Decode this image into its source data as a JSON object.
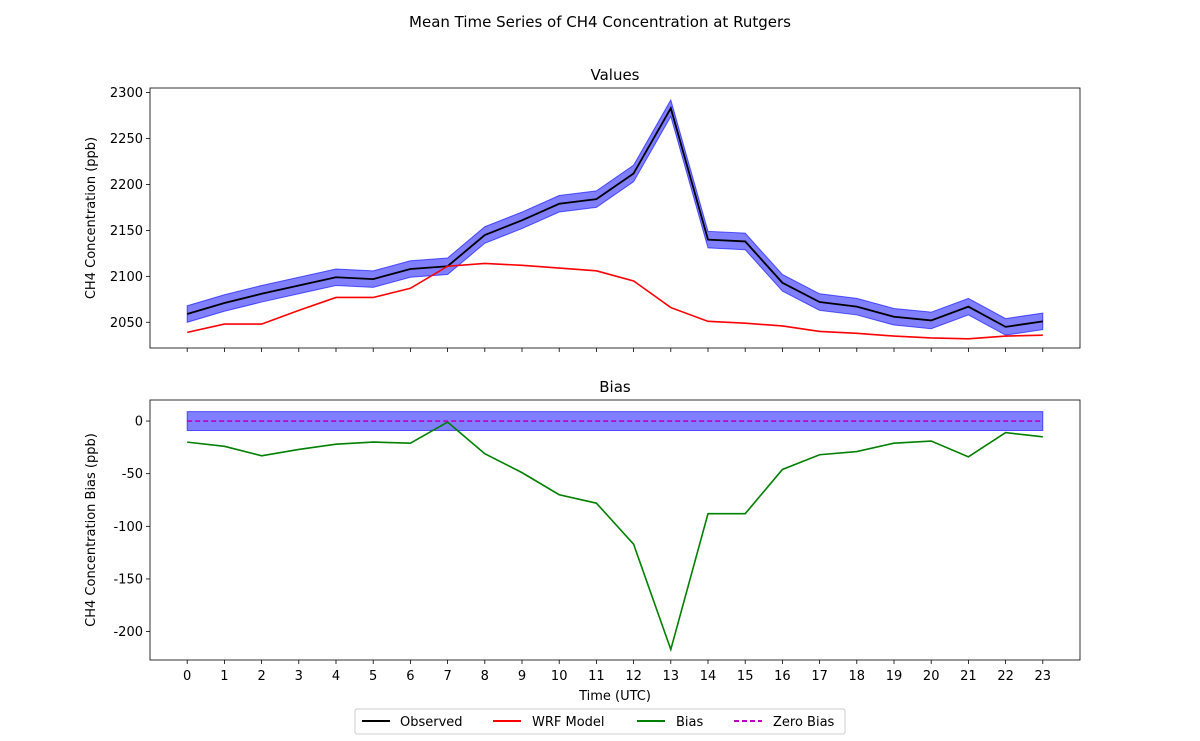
{
  "figure": {
    "suptitle": "Mean Time Series of CH4 Concentration at Rutgers"
  },
  "colors": {
    "observed": "#000000",
    "model": "#ff0000",
    "bias": "#008000",
    "zero_bias": "#bf00bf",
    "uncertainty_band": "#0000ff"
  },
  "legend": {
    "placement": "bottom-center",
    "entries": [
      {
        "label": "Observed",
        "color": "#000000",
        "style": "solid"
      },
      {
        "label": "WRF Model",
        "color": "#ff0000",
        "style": "solid"
      },
      {
        "label": "Bias",
        "color": "#008000",
        "style": "solid"
      },
      {
        "label": "Zero Bias",
        "color": "#bf00bf",
        "style": "dashed"
      }
    ]
  },
  "chart_data": [
    {
      "type": "line",
      "title": "Values",
      "xlabel": "",
      "ylabel": "CH4 Concentration (ppb)",
      "xlim": [
        -1,
        24
      ],
      "ylim": [
        2022,
        2305
      ],
      "yticks": [
        2050,
        2100,
        2150,
        2200,
        2250,
        2300
      ],
      "x": [
        0,
        1,
        2,
        3,
        4,
        5,
        6,
        7,
        8,
        9,
        10,
        11,
        12,
        13,
        14,
        15,
        16,
        17,
        18,
        19,
        20,
        21,
        22,
        23
      ],
      "series": [
        {
          "name": "Observed",
          "color": "#000000",
          "values": [
            2059,
            2071,
            2081,
            2090,
            2099,
            2097,
            2108,
            2111,
            2145,
            2161,
            2179,
            2184,
            2212,
            2283,
            2140,
            2138,
            2093,
            2072,
            2067,
            2056,
            2052,
            2067,
            2045,
            2051
          ],
          "band": 9
        },
        {
          "name": "WRF Model",
          "color": "#ff0000",
          "values": [
            2039,
            2048,
            2048,
            2063,
            2077,
            2077,
            2087,
            2111,
            2114,
            2112,
            2109,
            2106,
            2095,
            2066,
            2051,
            2049,
            2046,
            2040,
            2038,
            2035,
            2033,
            2032,
            2035,
            2036
          ]
        }
      ]
    },
    {
      "type": "line",
      "title": "Bias",
      "xlabel": "Time (UTC)",
      "ylabel": "CH4 Concentration Bias (ppb)",
      "xlim": [
        -1,
        24
      ],
      "ylim": [
        -227,
        20
      ],
      "yticks": [
        0,
        -50,
        -100,
        -150,
        -200
      ],
      "x": [
        0,
        1,
        2,
        3,
        4,
        5,
        6,
        7,
        8,
        9,
        10,
        11,
        12,
        13,
        14,
        15,
        16,
        17,
        18,
        19,
        20,
        21,
        22,
        23
      ],
      "xticklabels": [
        "0",
        "1",
        "2",
        "3",
        "4",
        "5",
        "6",
        "7",
        "8",
        "9",
        "10",
        "11",
        "12",
        "13",
        "14",
        "15",
        "16",
        "17",
        "18",
        "19",
        "20",
        "21",
        "22",
        "23"
      ],
      "series": [
        {
          "name": "Bias",
          "color": "#008000",
          "values": [
            -20,
            -24,
            -33,
            -27,
            -22,
            -20,
            -21,
            -1,
            -31,
            -49,
            -70,
            -78,
            -117,
            -217,
            -88,
            -88,
            -46,
            -32,
            -29,
            -21,
            -19,
            -34,
            -11,
            -15
          ]
        },
        {
          "name": "Zero Bias",
          "color": "#bf00bf",
          "dashed": true,
          "values": [
            0,
            0,
            0,
            0,
            0,
            0,
            0,
            0,
            0,
            0,
            0,
            0,
            0,
            0,
            0,
            0,
            0,
            0,
            0,
            0,
            0,
            0,
            0,
            0
          ],
          "band": 9
        }
      ]
    }
  ]
}
